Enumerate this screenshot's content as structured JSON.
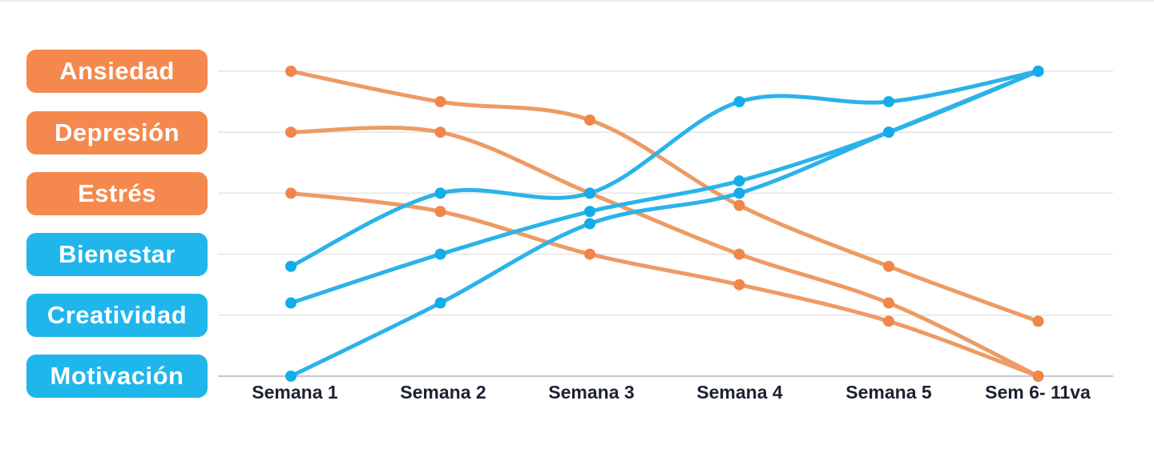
{
  "page": {
    "background_color": "#ffffff",
    "top_edge_line_color": "#ebebee"
  },
  "legend": {
    "position": "left",
    "items": [
      {
        "label": "Ansiedad",
        "color": "#F5894D"
      },
      {
        "label": "Depresión",
        "color": "#F5894D"
      },
      {
        "label": "Estrés",
        "color": "#F5894D"
      },
      {
        "label": "Bienestar",
        "color": "#1FB6EC"
      },
      {
        "label": "Creatividad",
        "color": "#1FB6EC"
      },
      {
        "label": "Motivación",
        "color": "#1FB6EC"
      }
    ]
  },
  "chart_data": {
    "type": "line",
    "title": "",
    "xlabel": "",
    "ylabel": "",
    "categories": [
      "Semana 1",
      "Semana 2",
      "Semana 3",
      "Semana 4",
      "Semana 5",
      "Sem 6- 11va"
    ],
    "series": [
      {
        "name": "Ansiedad",
        "group": "negative",
        "line_color": "#ED9B64",
        "dot_color": "#F0864A",
        "values": [
          5.0,
          4.5,
          4.2,
          2.8,
          1.8,
          0.9
        ]
      },
      {
        "name": "Depresión",
        "group": "negative",
        "line_color": "#ED9B64",
        "dot_color": "#F0864A",
        "values": [
          4.0,
          4.0,
          3.0,
          2.0,
          1.2,
          0.0
        ]
      },
      {
        "name": "Estrés",
        "group": "negative",
        "line_color": "#ED9B64",
        "dot_color": "#F0864A",
        "values": [
          3.0,
          2.7,
          2.0,
          1.5,
          0.9,
          0.0
        ]
      },
      {
        "name": "Bienestar",
        "group": "positive",
        "line_color": "#2BB3E9",
        "dot_color": "#12ACE9",
        "values": [
          1.8,
          3.0,
          3.0,
          4.5,
          4.5,
          5.0
        ]
      },
      {
        "name": "Creatividad",
        "group": "positive",
        "line_color": "#2BB3E9",
        "dot_color": "#12ACE9",
        "values": [
          1.2,
          2.0,
          2.7,
          3.2,
          4.0,
          5.0
        ]
      },
      {
        "name": "Motivación",
        "group": "positive",
        "line_color": "#2BB3E9",
        "dot_color": "#12ACE9",
        "values": [
          0.0,
          1.2,
          2.5,
          3.0,
          4.0,
          5.0
        ]
      }
    ],
    "ylim": [
      0,
      5
    ],
    "grid": true,
    "gridline_color": "#e4e4e7",
    "baseline_color": "#c7c7cd",
    "tick_label_color": "#1d2231",
    "legend_position": "left",
    "curve": "smooth"
  }
}
